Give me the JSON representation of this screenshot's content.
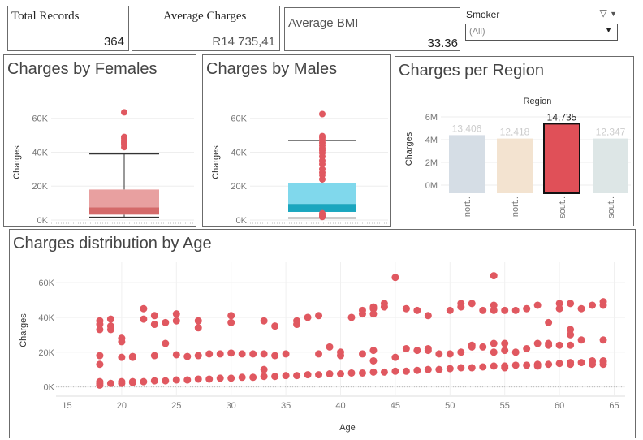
{
  "kpis": {
    "total_records": {
      "title": "Total Records",
      "value": "364"
    },
    "average_charges": {
      "title": "Average Charges",
      "value": "R14 735,41"
    },
    "average_bmi": {
      "title": "Average BMI",
      "value": "33.36"
    }
  },
  "filter": {
    "label": "Smoker",
    "selected": "(All)",
    "filter_icon": "funnel-icon",
    "menu_icon": "triangle-down-icon"
  },
  "colors": {
    "female": "#e8a0a0",
    "female_dark": "#d46a6a",
    "male": "#80d8ec",
    "male_dark": "#1aa6bf",
    "point": "#e05860",
    "region_highlight": "#e05058"
  },
  "chart_data": [
    {
      "id": "females",
      "type": "box",
      "title": "Charges by Females",
      "ylabel": "Charges",
      "ylim": [
        0,
        68000
      ],
      "yticks": [
        "0K",
        "20K",
        "40K",
        "60K"
      ],
      "box": {
        "min": 1600,
        "q1": 3200,
        "median": 7500,
        "q3": 18000,
        "max": 39000
      },
      "outliers": [
        43000,
        44500,
        45500,
        46500,
        48000,
        49000,
        63500
      ]
    },
    {
      "id": "males",
      "type": "box",
      "title": "Charges by Males",
      "ylabel": "Charges",
      "ylim": [
        0,
        68000
      ],
      "yticks": [
        "0K",
        "20K",
        "40K",
        "60K"
      ],
      "box": {
        "min": 1200,
        "q1": 4800,
        "median": 9500,
        "q3": 22000,
        "max": 47000
      },
      "outliers": [
        1800,
        2400,
        3000,
        4000,
        24000,
        26500,
        28000,
        30000,
        33000,
        35000,
        37500,
        39500,
        41000,
        42500,
        44000,
        45500,
        47000,
        48500,
        49500,
        62500
      ]
    },
    {
      "id": "region",
      "type": "bar",
      "title": "Charges per Region",
      "header": "Region",
      "ylabel": "Charges",
      "ylim": [
        0,
        7000000
      ],
      "yticks": [
        "0M",
        "2M",
        "4M",
        "6M"
      ],
      "categories": [
        "nort..",
        "nort..",
        "sout..",
        "sout.."
      ],
      "values": [
        4.4,
        4.1,
        5.4,
        4.1
      ],
      "labels": [
        "13,406",
        "12,418",
        "14,735",
        "12,347"
      ],
      "colors": [
        "#d5dde5",
        "#f3e3d0",
        "#e05058",
        "#dde6e6"
      ],
      "highlight_index": 2
    },
    {
      "id": "age",
      "type": "scatter",
      "title": "Charges distribution by Age",
      "xlabel": "Age",
      "ylabel": "Charges",
      "xlim": [
        14,
        66
      ],
      "ylim": [
        -3000,
        68000
      ],
      "xticks": [
        15,
        20,
        25,
        30,
        35,
        40,
        45,
        50,
        55,
        60,
        65
      ],
      "yticks": [
        "0K",
        "20K",
        "40K",
        "60K"
      ],
      "points": [
        [
          18,
          1000
        ],
        [
          18,
          2000
        ],
        [
          18,
          3000
        ],
        [
          18,
          13000
        ],
        [
          18,
          18000
        ],
        [
          18,
          33000
        ],
        [
          18,
          36000
        ],
        [
          18,
          38000
        ],
        [
          19,
          2000
        ],
        [
          19,
          33000
        ],
        [
          19,
          35000
        ],
        [
          19,
          39000
        ],
        [
          20,
          2000
        ],
        [
          20,
          3000
        ],
        [
          20,
          17000
        ],
        [
          20,
          26000
        ],
        [
          20,
          28000
        ],
        [
          21,
          2500
        ],
        [
          21,
          3000
        ],
        [
          21,
          17000
        ],
        [
          21,
          17500
        ],
        [
          22,
          3000
        ],
        [
          22,
          39000
        ],
        [
          22,
          45000
        ],
        [
          23,
          3500
        ],
        [
          23,
          18000
        ],
        [
          23,
          36000
        ],
        [
          23,
          41000
        ],
        [
          24,
          3500
        ],
        [
          24,
          25000
        ],
        [
          24,
          37000
        ],
        [
          25,
          4000
        ],
        [
          25,
          18500
        ],
        [
          25,
          38000
        ],
        [
          25,
          42000
        ],
        [
          26,
          4000
        ],
        [
          26,
          17500
        ],
        [
          27,
          4500
        ],
        [
          27,
          18000
        ],
        [
          27,
          34000
        ],
        [
          27,
          38000
        ],
        [
          28,
          4500
        ],
        [
          28,
          19000
        ],
        [
          29,
          5000
        ],
        [
          29,
          19000
        ],
        [
          30,
          5000
        ],
        [
          30,
          19500
        ],
        [
          30,
          37000
        ],
        [
          30,
          41000
        ],
        [
          31,
          5500
        ],
        [
          31,
          19000
        ],
        [
          32,
          5500
        ],
        [
          32,
          19000
        ],
        [
          33,
          6000
        ],
        [
          33,
          10000
        ],
        [
          33,
          19000
        ],
        [
          33,
          38000
        ],
        [
          34,
          6000
        ],
        [
          34,
          35000
        ],
        [
          34,
          18000
        ],
        [
          35,
          6500
        ],
        [
          35,
          19000
        ],
        [
          36,
          6500
        ],
        [
          36,
          36000
        ],
        [
          36,
          38000
        ],
        [
          37,
          7000
        ],
        [
          37,
          40000
        ],
        [
          38,
          7000
        ],
        [
          38,
          19000
        ],
        [
          38,
          41000
        ],
        [
          39,
          7500
        ],
        [
          39,
          23000
        ],
        [
          40,
          7500
        ],
        [
          40,
          18000
        ],
        [
          40,
          20000
        ],
        [
          41,
          8000
        ],
        [
          41,
          40000
        ],
        [
          42,
          8000
        ],
        [
          42,
          19000
        ],
        [
          42,
          42000
        ],
        [
          42,
          44000
        ],
        [
          43,
          8500
        ],
        [
          43,
          15000
        ],
        [
          43,
          21000
        ],
        [
          43,
          42000
        ],
        [
          43,
          45000
        ],
        [
          43,
          46000
        ],
        [
          44,
          8500
        ],
        [
          44,
          46000
        ],
        [
          44,
          48000
        ],
        [
          45,
          9000
        ],
        [
          45,
          17000
        ],
        [
          45,
          63000
        ],
        [
          46,
          9000
        ],
        [
          46,
          22000
        ],
        [
          46,
          45000
        ],
        [
          47,
          9500
        ],
        [
          47,
          21000
        ],
        [
          47,
          44000
        ],
        [
          48,
          10000
        ],
        [
          48,
          22000
        ],
        [
          48,
          21000
        ],
        [
          48,
          41000
        ],
        [
          49,
          10000
        ],
        [
          49,
          19000
        ],
        [
          50,
          10500
        ],
        [
          50,
          19000
        ],
        [
          50,
          44000
        ],
        [
          51,
          11000
        ],
        [
          51,
          20000
        ],
        [
          51,
          46000
        ],
        [
          51,
          48000
        ],
        [
          52,
          11000
        ],
        [
          52,
          23000
        ],
        [
          52,
          24000
        ],
        [
          52,
          48000
        ],
        [
          53,
          11500
        ],
        [
          53,
          23000
        ],
        [
          53,
          44000
        ],
        [
          54,
          12000
        ],
        [
          54,
          20000
        ],
        [
          54,
          25000
        ],
        [
          54,
          44000
        ],
        [
          54,
          47000
        ],
        [
          54,
          64000
        ],
        [
          55,
          12000
        ],
        [
          55,
          11000
        ],
        [
          55,
          21000
        ],
        [
          55,
          25000
        ],
        [
          55,
          44000
        ],
        [
          56,
          12500
        ],
        [
          56,
          20000
        ],
        [
          56,
          44000
        ],
        [
          57,
          12500
        ],
        [
          57,
          22000
        ],
        [
          57,
          45000
        ],
        [
          58,
          13000
        ],
        [
          58,
          12000
        ],
        [
          58,
          25000
        ],
        [
          58,
          47000
        ],
        [
          59,
          13000
        ],
        [
          59,
          24000
        ],
        [
          59,
          25000
        ],
        [
          59,
          37000
        ],
        [
          60,
          13500
        ],
        [
          60,
          24000
        ],
        [
          60,
          45000
        ],
        [
          60,
          48000
        ],
        [
          61,
          14000
        ],
        [
          61,
          13000
        ],
        [
          61,
          24000
        ],
        [
          61,
          30000
        ],
        [
          61,
          33000
        ],
        [
          61,
          48000
        ],
        [
          62,
          14000
        ],
        [
          62,
          27000
        ],
        [
          62,
          45000
        ],
        [
          63,
          14500
        ],
        [
          63,
          15000
        ],
        [
          63,
          13000
        ],
        [
          63,
          47000
        ],
        [
          64,
          14500
        ],
        [
          64,
          15000
        ],
        [
          64,
          13000
        ],
        [
          64,
          27000
        ],
        [
          64,
          47000
        ],
        [
          64,
          49000
        ]
      ]
    }
  ]
}
